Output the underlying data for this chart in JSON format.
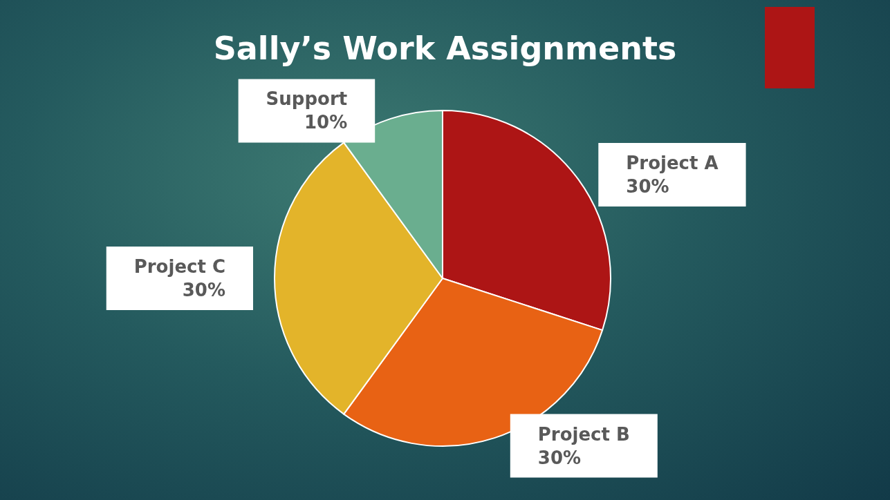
{
  "chart_data": {
    "type": "pie",
    "title": "Sally’s Work Assignments",
    "categories": [
      "Project A",
      "Project B",
      "Project C",
      "Support"
    ],
    "values": [
      30,
      30,
      30,
      10
    ],
    "value_labels": [
      "30%",
      "30%",
      "30%",
      "10%"
    ],
    "colors": [
      "#ad1515",
      "#e86214",
      "#e3b42a",
      "#6aae8f"
    ],
    "legend": false
  }
}
